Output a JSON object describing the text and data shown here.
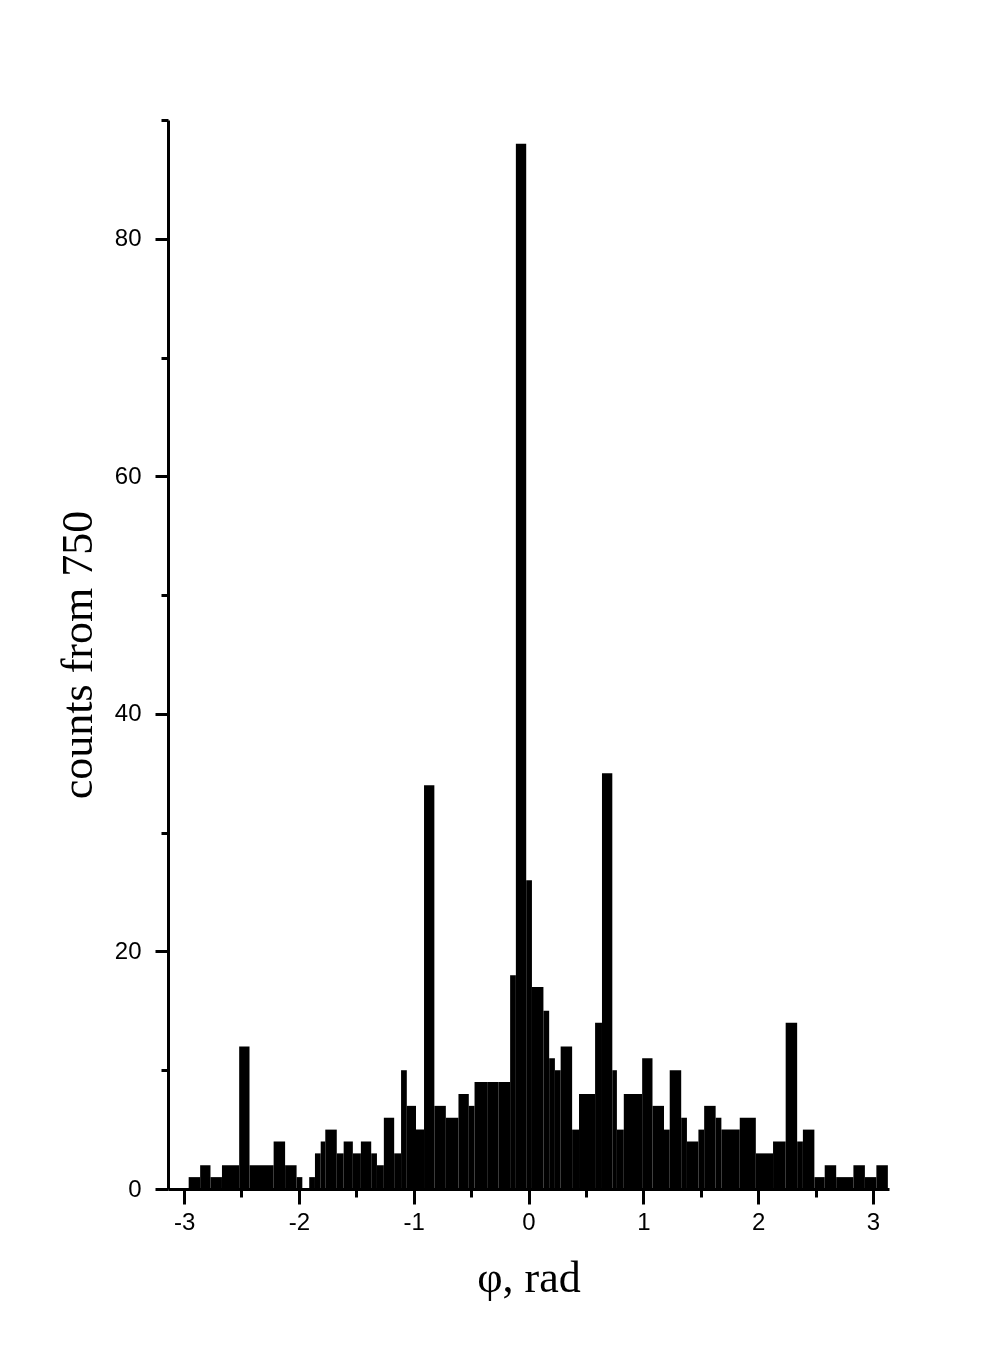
{
  "chart_data": {
    "type": "histogram",
    "xlabel": "φ, rad",
    "ylabel": "counts from 750",
    "color": "#000000",
    "bins": [
      -2.96,
      -2.86,
      -2.77,
      -2.67,
      -2.52,
      -2.43,
      -2.22,
      -2.12,
      -2.02,
      -1.97,
      -1.91,
      -1.86,
      -1.81,
      -1.77,
      -1.67,
      -1.61,
      -1.53,
      -1.46,
      -1.37,
      -1.32,
      -1.26,
      -1.17,
      -1.11,
      -1.06,
      -0.98,
      -0.91,
      -0.82,
      -0.72,
      -0.61,
      -0.52,
      -0.47,
      -0.36,
      -0.26,
      -0.16,
      -0.11,
      -0.02,
      0.03,
      0.13,
      0.18,
      0.23,
      0.28,
      0.38,
      0.44,
      0.58,
      0.64,
      0.73,
      0.77,
      0.83,
      0.99,
      1.08,
      1.18,
      1.23,
      1.33,
      1.38,
      1.48,
      1.53,
      1.63,
      1.68,
      1.84,
      1.98,
      2.13,
      2.24,
      2.34,
      2.39,
      2.49,
      2.58,
      2.68,
      2.83,
      2.93,
      3.03,
      3.13
    ],
    "values": [
      1,
      2,
      1,
      2,
      12,
      2,
      4,
      2,
      1,
      0,
      1,
      3,
      4,
      5,
      3,
      4,
      3,
      4,
      3,
      2,
      6,
      3,
      10,
      7,
      5,
      34,
      7,
      6,
      8,
      7,
      9,
      9,
      9,
      18,
      88,
      26,
      17,
      15,
      11,
      10,
      12,
      5,
      8,
      14,
      35,
      10,
      5,
      8,
      11,
      7,
      5,
      10,
      6,
      4,
      5,
      7,
      6,
      5,
      6,
      3,
      4,
      14,
      4,
      5,
      1,
      2,
      1,
      2,
      1,
      2
    ],
    "xlim": [
      -3.14,
      3.14
    ],
    "xticks": [
      -3,
      {
        "value": -2.5,
        "label": null
      },
      -2,
      {
        "value": -1.5,
        "label": null
      },
      -1,
      {
        "value": -0.5,
        "label": null
      },
      0,
      {
        "value": 0.5,
        "label": null
      },
      1,
      {
        "value": 1.5,
        "label": null
      },
      2,
      {
        "value": 2.5,
        "label": null
      },
      3
    ],
    "ylim": [
      0,
      90
    ],
    "yticks": [
      0,
      {
        "value": 10,
        "label": null
      },
      20,
      {
        "value": 30,
        "label": null
      },
      40,
      {
        "value": 50,
        "label": null
      },
      60,
      {
        "value": 70,
        "label": null
      },
      80,
      {
        "value": 90,
        "label": null
      }
    ]
  }
}
